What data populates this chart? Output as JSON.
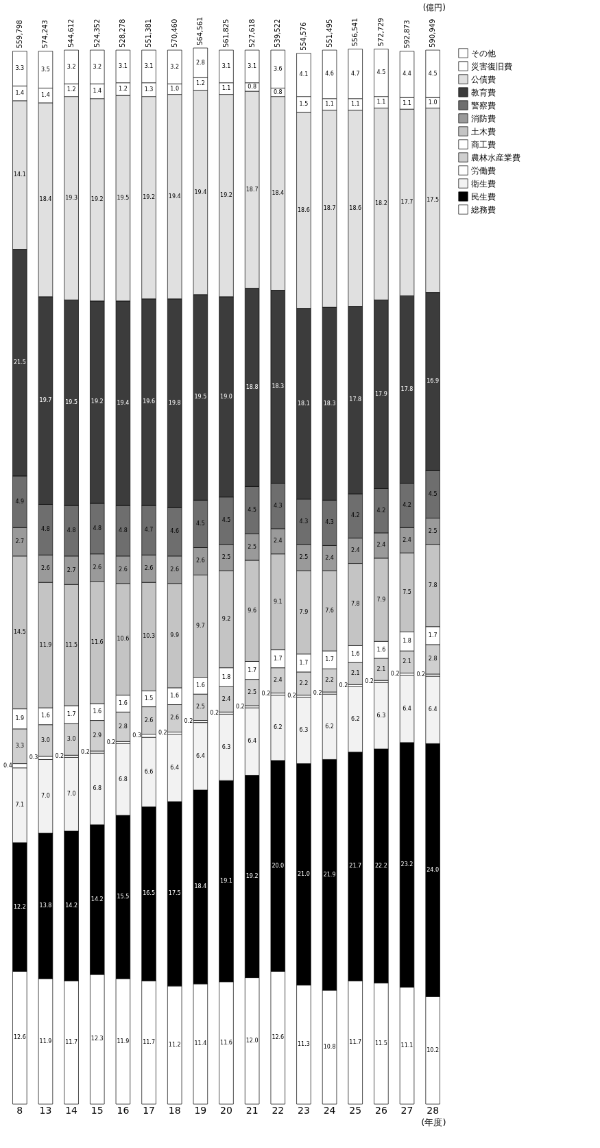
{
  "chart_data": {
    "type": "bar",
    "stacked": true,
    "legend": "right",
    "grid": false,
    "tick_labels": "x",
    "xlabel": "(年度)",
    "annotations": [
      "(億円)",
      "559,798",
      "574,243",
      "544,612",
      "524,352",
      "528,278",
      "551,381",
      "570,460",
      "564,561",
      "561,825",
      "527,618",
      "539,522",
      "554,576",
      "551,495",
      "556,541",
      "572,729",
      "592,873",
      "590,949"
    ],
    "categories": [
      "8",
      "13",
      "14",
      "15",
      "16",
      "17",
      "18",
      "19",
      "20",
      "21",
      "22",
      "23",
      "24",
      "25",
      "26",
      "27",
      "28"
    ],
    "series": [
      {
        "name": "総務費",
        "color": "#ffffff",
        "values": [
          12.6,
          11.9,
          11.7,
          12.3,
          11.9,
          11.7,
          11.2,
          11.4,
          11.6,
          12.0,
          12.6,
          11.3,
          10.8,
          11.7,
          11.5,
          11.1,
          10.2
        ],
        "value_labels": [
          "12.6",
          "11.9",
          "11.7",
          "12.3",
          "11.9",
          "11.7",
          "11.2",
          "11.4",
          "11.6",
          "12.0",
          "12.6",
          "11.3",
          "10.8",
          "11.7",
          "11.5",
          "11.1",
          "10.2"
        ]
      },
      {
        "name": "民生費",
        "color": "#000000",
        "values": [
          12.2,
          13.8,
          14.2,
          14.2,
          15.5,
          16.5,
          17.5,
          18.4,
          19.1,
          19.2,
          20.0,
          21.0,
          21.9,
          21.7,
          22.2,
          23.2,
          24.0
        ],
        "value_labels": [
          "12.2",
          "13.8",
          "14.2",
          "14.2",
          "15.5",
          "16.5",
          "17.5",
          "18.4",
          "19.1",
          "19.2",
          "20.0",
          "21.0",
          "21.9",
          "21.7",
          "22.2",
          "23.2",
          "24.0"
        ]
      },
      {
        "name": "衛生費",
        "color": "#f2f2f2",
        "values": [
          7.1,
          7.0,
          7.0,
          6.8,
          6.8,
          6.6,
          6.4,
          6.4,
          6.3,
          6.4,
          6.2,
          6.3,
          6.2,
          6.2,
          6.3,
          6.4,
          6.4
        ],
        "value_labels": [
          "7.1",
          "7.0",
          "7.0",
          "6.8",
          "6.8",
          "6.6",
          "6.4",
          "6.4",
          "6.3",
          "6.4",
          "6.2",
          "6.3",
          "6.2",
          "6.2",
          "6.3",
          "6.4",
          "6.4"
        ]
      },
      {
        "name": "労働費",
        "color": "#ffffff",
        "values": [
          0.4,
          0.3,
          0.2,
          0.2,
          0.2,
          0.3,
          0.2,
          0.2,
          0.2,
          0.2,
          0.2,
          0.2,
          0.2,
          0.2,
          0.2,
          0.2,
          0.2
        ],
        "value_labels": [
          "0.4",
          "0.3",
          "0.2",
          "0.2",
          "0.2",
          "0.3",
          "0.2",
          "0.2",
          "0.2",
          "0.2",
          "0.2",
          "0.2",
          "0.2",
          "0.2",
          "0.2",
          "0.2",
          "0.2"
        ]
      },
      {
        "name": "農林水産業費",
        "color": "#cfcfcf",
        "values": [
          3.3,
          3.0,
          3.0,
          2.9,
          2.8,
          2.6,
          2.6,
          2.5,
          2.4,
          2.5,
          2.4,
          2.2,
          2.2,
          2.1,
          2.1,
          2.1,
          2.8
        ],
        "value_labels": [
          "3.3",
          "3.0",
          "3.0",
          "2.9",
          "2.8",
          "2.6",
          "2.6",
          "2.5",
          "2.4",
          "2.5",
          "2.4",
          "2.2",
          "2.2",
          "2.1",
          "2.1",
          "2.1",
          "2.8"
        ]
      },
      {
        "name": "商工費",
        "color": "#ffffff",
        "values": [
          1.9,
          1.6,
          1.7,
          1.6,
          1.6,
          1.5,
          1.6,
          1.6,
          1.8,
          1.7,
          1.7,
          1.7,
          1.7,
          1.6,
          1.6,
          1.8,
          1.7
        ],
        "value_labels": [
          "1.9",
          "1.6",
          "1.7",
          "1.6",
          "1.6",
          "1.5",
          "1.6",
          "1.6",
          "1.8",
          "1.7",
          "1.7",
          "1.7",
          "1.7",
          "1.6",
          "1.6",
          "1.8",
          "1.7"
        ]
      },
      {
        "name": "土木費",
        "color": "#c4c4c4",
        "values": [
          14.5,
          11.9,
          11.5,
          11.6,
          10.6,
          10.3,
          9.9,
          9.7,
          9.2,
          9.6,
          9.1,
          7.9,
          7.6,
          7.8,
          7.9,
          7.5,
          7.8
        ],
        "value_labels": [
          "14.5",
          "11.9",
          "11.5",
          "11.6",
          "10.6",
          "10.3",
          "9.9",
          "9.7",
          "9.2",
          "9.6",
          "9.1",
          "7.9",
          "7.6",
          "7.8",
          "7.9",
          "7.5",
          "7.8"
        ]
      },
      {
        "name": "消防費",
        "color": "#9a9a9a",
        "values": [
          2.7,
          2.6,
          2.7,
          2.6,
          2.6,
          2.6,
          2.6,
          2.6,
          2.5,
          2.5,
          2.4,
          2.5,
          2.4,
          2.4,
          2.4,
          2.4,
          2.5
        ],
        "value_labels": [
          "2.7",
          "2.6",
          "2.7",
          "2.6",
          "2.6",
          "2.6",
          "2.6",
          "2.6",
          "2.5",
          "2.5",
          "2.4",
          "2.5",
          "2.4",
          "2.4",
          "2.4",
          "2.4",
          "2.5"
        ]
      },
      {
        "name": "警察費",
        "color": "#6e6e6e",
        "values": [
          4.9,
          4.8,
          4.8,
          4.8,
          4.8,
          4.7,
          4.6,
          4.5,
          4.5,
          4.5,
          4.3,
          4.3,
          4.3,
          4.2,
          4.2,
          4.2,
          4.5
        ],
        "value_labels": [
          "4.9",
          "4.8",
          "4.8",
          "4.8",
          "4.8",
          "4.7",
          "4.6",
          "4.5",
          "4.5",
          "4.5",
          "4.3",
          "4.3",
          "4.3",
          "4.2",
          "4.2",
          "4.2",
          "4.5"
        ]
      },
      {
        "name": "教育費",
        "color": "#3c3c3c",
        "values": [
          21.5,
          19.7,
          19.5,
          19.2,
          19.4,
          19.6,
          19.8,
          19.5,
          19.0,
          18.8,
          18.3,
          18.1,
          18.3,
          17.8,
          17.9,
          17.8,
          16.9
        ],
        "value_labels": [
          "21.5",
          "19.7",
          "19.5",
          "19.2",
          "19.4",
          "19.6",
          "19.8",
          "19.5",
          "19.0",
          "18.8",
          "18.3",
          "18.1",
          "18.3",
          "17.8",
          "17.9",
          "17.8",
          "16.9"
        ]
      },
      {
        "name": "公債費",
        "color": "#e0e0e0",
        "values": [
          14.1,
          18.4,
          19.3,
          19.2,
          19.5,
          19.2,
          19.4,
          19.4,
          19.2,
          18.7,
          18.4,
          18.6,
          18.7,
          18.6,
          18.2,
          17.7,
          17.5
        ],
        "value_labels": [
          "14.1",
          "18.4",
          "19.3",
          "19.2",
          "19.5",
          "19.2",
          "19.4",
          "19.4",
          "19.2",
          "18.7",
          "18.4",
          "18.6",
          "18.7",
          "18.6",
          "18.2",
          "17.7",
          "17.5"
        ]
      },
      {
        "name": "災害復旧費",
        "color": "#ffffff",
        "values": [
          1.4,
          1.4,
          1.2,
          1.4,
          1.2,
          1.3,
          1.0,
          1.2,
          1.1,
          0.8,
          0.8,
          1.5,
          1.1,
          1.1,
          1.1,
          1.1,
          1.0
        ],
        "value_labels": [
          "1.4",
          "1.4",
          "1.2",
          "1.4",
          "1.2",
          "1.3",
          "1.0",
          "1.2",
          "1.1",
          "0.8",
          "0.8",
          "1.5",
          "1.1",
          "1.1",
          "1.1",
          "1.1",
          "1.0"
        ]
      },
      {
        "name": "その他",
        "color": "#ffffff",
        "values": [
          3.3,
          3.5,
          3.2,
          3.2,
          3.1,
          3.1,
          3.2,
          2.8,
          3.1,
          3.1,
          3.6,
          4.1,
          4.6,
          4.7,
          4.5,
          4.4,
          4.5
        ],
        "value_labels": [
          "3.3",
          "3.5",
          "3.2",
          "3.2",
          "3.1",
          "3.1",
          "3.2",
          "2.8",
          "3.1",
          "3.1",
          "3.6",
          "4.1",
          "4.6",
          "4.7",
          "4.5",
          "4.4",
          "4.5"
        ]
      }
    ]
  }
}
